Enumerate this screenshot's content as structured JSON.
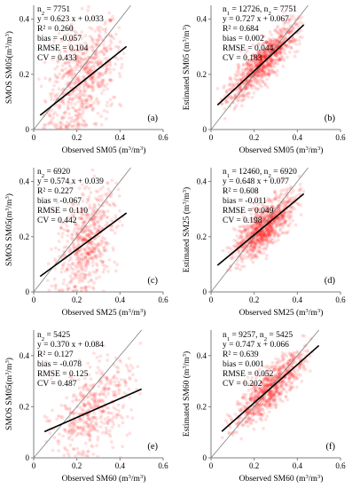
{
  "chart_data": [
    {
      "type": "scatter",
      "panel_label": "(a)",
      "xlabel_parts": [
        "Observed SM05 (m",
        "3",
        "/m",
        "3",
        ")"
      ],
      "ylabel_parts": [
        "SMOS SM05(m",
        "3",
        "/m",
        "3",
        ")"
      ],
      "xlim": [
        0,
        0.6
      ],
      "ylim": [
        0,
        0.45
      ],
      "x_ticks": [
        0,
        0.2,
        0.4,
        0.6
      ],
      "y_ticks": [
        0,
        0.2,
        0.4
      ],
      "x_tick_labels": [
        "0",
        "0.2",
        "0.4",
        "0.6"
      ],
      "y_tick_labels": [
        "0",
        "0.2",
        "0.4"
      ],
      "stats": [
        {
          "parts": [
            [
              "n",
              "n"
            ],
            [
              "2",
              "sub"
            ],
            [
              " = 7751",
              "n"
            ]
          ]
        },
        {
          "parts": [
            [
              "y = 0.623 x + 0.033",
              "n"
            ]
          ]
        },
        {
          "parts": [
            [
              "R² = 0.260",
              "n"
            ]
          ]
        },
        {
          "parts": [
            [
              "bias = -0.057",
              "n"
            ]
          ]
        },
        {
          "parts": [
            [
              "RMSE = 0.104",
              "n"
            ]
          ]
        },
        {
          "parts": [
            [
              "CV = 0.433",
              "n"
            ]
          ]
        }
      ],
      "fit_line": {
        "slope": 0.623,
        "intercept": 0.033,
        "x_range": [
          0.03,
          0.43
        ]
      },
      "one_to_one": true,
      "point_cloud": {
        "n": 7751,
        "x_range": [
          0.02,
          0.42
        ],
        "slope": 0.623,
        "intercept": 0.033,
        "spread": 0.095,
        "x_mean": 0.23,
        "x_sd": 0.085
      }
    },
    {
      "type": "scatter",
      "panel_label": "(b)",
      "xlabel_parts": [
        "Observed SM05 (m",
        "3",
        "/m",
        "3",
        ")"
      ],
      "ylabel_parts": [
        "Estimated SM05 (m",
        "3",
        "/m",
        "3",
        ")"
      ],
      "xlim": [
        0,
        0.6
      ],
      "ylim": [
        0,
        0.45
      ],
      "x_ticks": [
        0,
        0.2,
        0.4,
        0.6
      ],
      "y_ticks": [
        0,
        0.2,
        0.4
      ],
      "x_tick_labels": [
        "0",
        "0.2",
        "0.4",
        "0.6"
      ],
      "y_tick_labels": [
        "0",
        "0.2",
        "0.4"
      ],
      "stats": [
        {
          "parts": [
            [
              "n",
              "n"
            ],
            [
              "1",
              "sub"
            ],
            [
              " = 12726, n",
              "n"
            ],
            [
              "2",
              "sub"
            ],
            [
              " = 7751",
              "n"
            ]
          ]
        },
        {
          "parts": [
            [
              "y = 0.727 x + 0.067",
              "n"
            ]
          ]
        },
        {
          "parts": [
            [
              "R² = 0.684",
              "n"
            ]
          ]
        },
        {
          "parts": [
            [
              "bias = 0.002",
              "n"
            ]
          ]
        },
        {
          "parts": [
            [
              "RMSE = 0.044",
              "n"
            ]
          ]
        },
        {
          "parts": [
            [
              "CV = 0.183",
              "n"
            ]
          ]
        }
      ],
      "fit_line": {
        "slope": 0.727,
        "intercept": 0.067,
        "x_range": [
          0.03,
          0.43
        ]
      },
      "one_to_one": true,
      "point_cloud": {
        "n": 12726,
        "x_range": [
          0.03,
          0.43
        ],
        "slope": 0.727,
        "intercept": 0.067,
        "spread": 0.035,
        "x_mean": 0.24,
        "x_sd": 0.08
      }
    },
    {
      "type": "scatter",
      "panel_label": "(c)",
      "xlabel_parts": [
        "Observed SM25 (m",
        "3",
        "/m",
        "3",
        ")"
      ],
      "ylabel_parts": [
        "SMOS SM05(m",
        "3",
        "/m",
        "3",
        ")"
      ],
      "xlim": [
        0,
        0.6
      ],
      "ylim": [
        0,
        0.45
      ],
      "x_ticks": [
        0,
        0.2,
        0.4,
        0.6
      ],
      "y_ticks": [
        0,
        0.2,
        0.4
      ],
      "x_tick_labels": [
        "0",
        "0.2",
        "0.4",
        "0.6"
      ],
      "y_tick_labels": [
        "0",
        "0.2",
        "0.4"
      ],
      "stats": [
        {
          "parts": [
            [
              "n",
              "n"
            ],
            [
              "2",
              "sub"
            ],
            [
              " = 6920",
              "n"
            ]
          ]
        },
        {
          "parts": [
            [
              "y = 0.574 x + 0.039",
              "n"
            ]
          ]
        },
        {
          "parts": [
            [
              "R² = 0.227",
              "n"
            ]
          ]
        },
        {
          "parts": [
            [
              "bias = -0.067",
              "n"
            ]
          ]
        },
        {
          "parts": [
            [
              "RMSE = 0.110",
              "n"
            ]
          ]
        },
        {
          "parts": [
            [
              "CV =  0.442",
              "n"
            ]
          ]
        }
      ],
      "fit_line": {
        "slope": 0.574,
        "intercept": 0.039,
        "x_range": [
          0.03,
          0.43
        ]
      },
      "one_to_one": true,
      "point_cloud": {
        "n": 6920,
        "x_range": [
          0.05,
          0.42
        ],
        "slope": 0.574,
        "intercept": 0.039,
        "spread": 0.09,
        "x_mean": 0.25,
        "x_sd": 0.07
      }
    },
    {
      "type": "scatter",
      "panel_label": "(d)",
      "xlabel_parts": [
        "Observed SM25 (m",
        "3",
        "/m",
        "3",
        ")"
      ],
      "ylabel_parts": [
        "Estimated SM25 (m",
        "3",
        "/m",
        "3",
        ")"
      ],
      "xlim": [
        0,
        0.6
      ],
      "ylim": [
        0,
        0.45
      ],
      "x_ticks": [
        0,
        0.2,
        0.4,
        0.6
      ],
      "y_ticks": [
        0,
        0.2,
        0.4
      ],
      "x_tick_labels": [
        "0",
        "0.2",
        "0.4",
        "0.6"
      ],
      "y_tick_labels": [
        "0",
        "0.2",
        "0.4"
      ],
      "stats": [
        {
          "parts": [
            [
              "n",
              "n"
            ],
            [
              "1",
              "sub"
            ],
            [
              " = 12460, n",
              "n"
            ],
            [
              "2",
              "sub"
            ],
            [
              " = 6920",
              "n"
            ]
          ]
        },
        {
          "parts": [
            [
              "y = 0.648 x + 0.077",
              "n"
            ]
          ]
        },
        {
          "parts": [
            [
              "R² = 0.608",
              "n"
            ]
          ]
        },
        {
          "parts": [
            [
              "bias = -0.011",
              "n"
            ]
          ]
        },
        {
          "parts": [
            [
              "RMSE = 0.049",
              "n"
            ]
          ]
        },
        {
          "parts": [
            [
              "CV = 0.198",
              "n"
            ]
          ]
        }
      ],
      "fit_line": {
        "slope": 0.648,
        "intercept": 0.077,
        "x_range": [
          0.03,
          0.43
        ]
      },
      "one_to_one": true,
      "point_cloud": {
        "n": 12460,
        "x_range": [
          0.05,
          0.43
        ],
        "slope": 0.648,
        "intercept": 0.077,
        "spread": 0.04,
        "x_mean": 0.25,
        "x_sd": 0.07
      }
    },
    {
      "type": "scatter",
      "panel_label": "(e)",
      "xlabel_parts": [
        "Observed SM60 (m",
        "3",
        "/m",
        "3",
        ")"
      ],
      "ylabel_parts": [
        "SMOS SM05(m",
        "3",
        "/m",
        "3",
        ")"
      ],
      "xlim": [
        0,
        0.6
      ],
      "ylim": [
        0,
        0.5
      ],
      "x_ticks": [
        0,
        0.2,
        0.4,
        0.6
      ],
      "y_ticks": [
        0,
        0.2,
        0.4
      ],
      "x_tick_labels": [
        "0",
        "0.2",
        "0.4",
        "0.6"
      ],
      "y_tick_labels": [
        "0",
        "0.2",
        "0.4"
      ],
      "stats": [
        {
          "parts": [
            [
              "n",
              "n"
            ],
            [
              "2",
              "sub"
            ],
            [
              " = 5425",
              "n"
            ]
          ]
        },
        {
          "parts": [
            [
              "y = 0.370 x + 0.084",
              "n"
            ]
          ]
        },
        {
          "parts": [
            [
              "R² = 0.127",
              "n"
            ]
          ]
        },
        {
          "parts": [
            [
              "bias = -0.078",
              "n"
            ]
          ]
        },
        {
          "parts": [
            [
              "RMSE = 0.125",
              "n"
            ]
          ]
        },
        {
          "parts": [
            [
              "CV = 0.487",
              "n"
            ]
          ]
        }
      ],
      "fit_line": {
        "slope": 0.37,
        "intercept": 0.084,
        "x_range": [
          0.05,
          0.5
        ]
      },
      "one_to_one": true,
      "point_cloud": {
        "n": 5425,
        "x_range": [
          0.05,
          0.5
        ],
        "slope": 0.37,
        "intercept": 0.084,
        "spread": 0.085,
        "x_mean": 0.27,
        "x_sd": 0.09
      }
    },
    {
      "type": "scatter",
      "panel_label": "(f)",
      "xlabel_parts": [
        "Observed SM60 (m",
        "3",
        "/m",
        "3",
        ")"
      ],
      "ylabel_parts": [
        "Estimated SM60 (m",
        "3",
        "/m",
        "3",
        ")"
      ],
      "xlim": [
        0,
        0.6
      ],
      "ylim": [
        0,
        0.5
      ],
      "x_ticks": [
        0,
        0.2,
        0.4,
        0.6
      ],
      "y_ticks": [
        0,
        0.2,
        0.4
      ],
      "x_tick_labels": [
        "0",
        "0.2",
        "0.4",
        "0.6"
      ],
      "y_tick_labels": [
        "0",
        "0.2",
        "0.4"
      ],
      "stats": [
        {
          "parts": [
            [
              "n",
              "n"
            ],
            [
              "1",
              "sub"
            ],
            [
              " = 9257, n",
              "n"
            ],
            [
              "2",
              "sub"
            ],
            [
              " = 5425",
              "n"
            ]
          ]
        },
        {
          "parts": [
            [
              "y = 0.747 x + 0.066",
              "n"
            ]
          ]
        },
        {
          "parts": [
            [
              "R² = 0.639",
              "n"
            ]
          ]
        },
        {
          "parts": [
            [
              "bias = 0.001",
              "n"
            ]
          ]
        },
        {
          "parts": [
            [
              "RMSE = 0.052",
              "n"
            ]
          ]
        },
        {
          "parts": [
            [
              "CV = 0.202",
              "n"
            ]
          ]
        }
      ],
      "fit_line": {
        "slope": 0.747,
        "intercept": 0.066,
        "x_range": [
          0.05,
          0.5
        ]
      },
      "one_to_one": true,
      "point_cloud": {
        "n": 9257,
        "x_range": [
          0.05,
          0.5
        ],
        "slope": 0.747,
        "intercept": 0.066,
        "spread": 0.04,
        "x_mean": 0.27,
        "x_sd": 0.08
      }
    }
  ],
  "colors": {
    "points": "#ff0000",
    "fit_line": "#000000",
    "one_to_one_line": "#808080",
    "axis": "#7f7f7f"
  }
}
